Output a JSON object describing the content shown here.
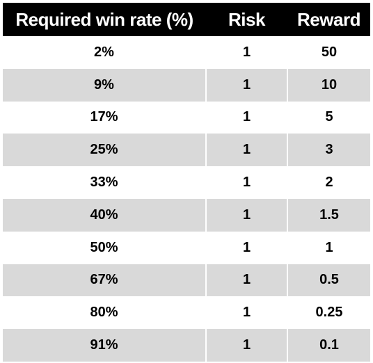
{
  "table": {
    "headers": [
      "Required win rate (%)",
      "Risk",
      "Reward"
    ],
    "rows": [
      [
        "2%",
        "1",
        "50"
      ],
      [
        "9%",
        "1",
        "10"
      ],
      [
        "17%",
        "1",
        "5"
      ],
      [
        "25%",
        "1",
        "3"
      ],
      [
        "33%",
        "1",
        "2"
      ],
      [
        "40%",
        "1",
        "1.5"
      ],
      [
        "50%",
        "1",
        "1"
      ],
      [
        "67%",
        "1",
        "0.5"
      ],
      [
        "80%",
        "1",
        "0.25"
      ],
      [
        "91%",
        "1",
        "0.1"
      ]
    ]
  },
  "colors": {
    "header_bg": "#000000",
    "header_text": "#ffffff",
    "row_alt_bg": "#d9d9d9",
    "row_bg": "#ffffff"
  }
}
